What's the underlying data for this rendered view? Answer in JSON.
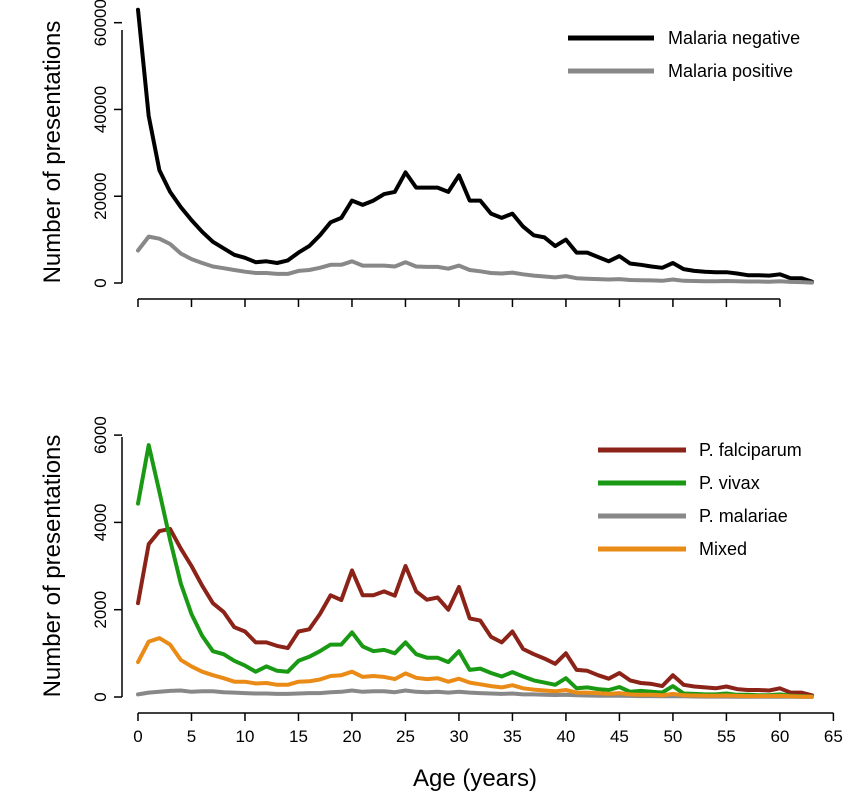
{
  "chart_data": [
    {
      "type": "line",
      "title": "",
      "xlabel": "",
      "ylabel": "Number of presentations",
      "xlim": [
        0,
        63
      ],
      "ylim": [
        0,
        65000
      ],
      "x_ticks": [
        0,
        5,
        10,
        15,
        20,
        25,
        30,
        35,
        40,
        45,
        50,
        55,
        60
      ],
      "y_ticks": [
        0,
        20000,
        40000,
        60000
      ],
      "y_tick_labels": [
        "0",
        "20000",
        "40000",
        "60000"
      ],
      "legend_position": "top-right",
      "x": [
        0,
        1,
        2,
        3,
        4,
        5,
        6,
        7,
        8,
        9,
        10,
        11,
        12,
        13,
        14,
        15,
        16,
        17,
        18,
        19,
        20,
        21,
        22,
        23,
        24,
        25,
        26,
        27,
        28,
        29,
        30,
        31,
        32,
        33,
        34,
        35,
        36,
        37,
        38,
        39,
        40,
        41,
        42,
        43,
        44,
        45,
        46,
        47,
        48,
        49,
        50,
        51,
        52,
        53,
        54,
        55,
        56,
        57,
        58,
        59,
        60,
        61,
        62,
        63
      ],
      "series": [
        {
          "name": "Malaria negative",
          "color": "#000000",
          "values": [
            63000,
            38500,
            26000,
            21000,
            17500,
            14500,
            11800,
            9500,
            8000,
            6500,
            5800,
            4800,
            5000,
            4600,
            5200,
            7000,
            8500,
            11000,
            14000,
            15000,
            19000,
            18000,
            19000,
            20500,
            21000,
            25500,
            22000,
            22000,
            22000,
            21000,
            24800,
            19000,
            19000,
            16000,
            15000,
            16000,
            13000,
            11000,
            10500,
            8500,
            10000,
            7000,
            7000,
            6000,
            5000,
            6200,
            4500,
            4200,
            3800,
            3500,
            4600,
            3200,
            2800,
            2600,
            2500,
            2500,
            2200,
            1800,
            1800,
            1700,
            2000,
            1100,
            1100,
            300
          ]
        },
        {
          "name": "Malaria positive",
          "color": "#888888",
          "values": [
            7500,
            10700,
            10200,
            9000,
            6800,
            5500,
            4600,
            3800,
            3400,
            3000,
            2600,
            2300,
            2300,
            2100,
            2100,
            2800,
            3000,
            3500,
            4200,
            4200,
            5000,
            4000,
            4000,
            4000,
            3800,
            4800,
            3800,
            3700,
            3700,
            3300,
            4000,
            3000,
            2700,
            2300,
            2200,
            2400,
            2000,
            1700,
            1500,
            1300,
            1600,
            1100,
            1000,
            900,
            800,
            900,
            700,
            650,
            600,
            500,
            800,
            500,
            450,
            400,
            400,
            450,
            400,
            350,
            350,
            300,
            400,
            250,
            200,
            100
          ]
        }
      ]
    },
    {
      "type": "line",
      "title": "",
      "xlabel": "Age (years)",
      "ylabel": "Number of presentations",
      "xlim": [
        0,
        63
      ],
      "ylim": [
        0,
        6300
      ],
      "x_ticks": [
        0,
        5,
        10,
        15,
        20,
        25,
        30,
        35,
        40,
        45,
        50,
        55,
        60,
        65
      ],
      "x_tick_labels": [
        "0",
        "5",
        "10",
        "15",
        "20",
        "25",
        "30",
        "35",
        "40",
        "45",
        "50",
        "55",
        "60",
        "65"
      ],
      "y_ticks": [
        0,
        2000,
        4000,
        6000
      ],
      "y_tick_labels": [
        "0",
        "2000",
        "4000",
        "6000"
      ],
      "legend_position": "top-right",
      "x": [
        0,
        1,
        2,
        3,
        4,
        5,
        6,
        7,
        8,
        9,
        10,
        11,
        12,
        13,
        14,
        15,
        16,
        17,
        18,
        19,
        20,
        21,
        22,
        23,
        24,
        25,
        26,
        27,
        28,
        29,
        30,
        31,
        32,
        33,
        34,
        35,
        36,
        37,
        38,
        39,
        40,
        41,
        42,
        43,
        44,
        45,
        46,
        47,
        48,
        49,
        50,
        51,
        52,
        53,
        54,
        55,
        56,
        57,
        58,
        59,
        60,
        61,
        62,
        63
      ],
      "series": [
        {
          "name": "P. falciparum",
          "color": "#8b2318",
          "values": [
            2150,
            3500,
            3800,
            3850,
            3400,
            3000,
            2550,
            2150,
            1950,
            1600,
            1500,
            1250,
            1250,
            1170,
            1120,
            1500,
            1550,
            1900,
            2330,
            2220,
            2900,
            2330,
            2330,
            2420,
            2320,
            3000,
            2420,
            2230,
            2280,
            2000,
            2520,
            1800,
            1750,
            1380,
            1250,
            1500,
            1100,
            980,
            880,
            760,
            1000,
            620,
            600,
            500,
            420,
            550,
            380,
            320,
            300,
            250,
            500,
            280,
            240,
            220,
            200,
            240,
            180,
            160,
            160,
            150,
            200,
            100,
            100,
            40
          ]
        },
        {
          "name": "P. vivax",
          "color": "#1a9a14",
          "values": [
            4430,
            5770,
            4700,
            3600,
            2600,
            1900,
            1400,
            1050,
            980,
            830,
            720,
            580,
            700,
            600,
            580,
            830,
            920,
            1050,
            1200,
            1200,
            1480,
            1160,
            1050,
            1080,
            1000,
            1250,
            980,
            900,
            900,
            800,
            1050,
            620,
            650,
            550,
            470,
            570,
            470,
            380,
            330,
            280,
            430,
            200,
            220,
            180,
            160,
            230,
            120,
            140,
            120,
            100,
            250,
            80,
            70,
            60,
            60,
            80,
            50,
            50,
            40,
            40,
            60,
            30,
            20,
            10
          ]
        },
        {
          "name": "P. malariae",
          "color": "#888888",
          "values": [
            60,
            100,
            120,
            140,
            150,
            120,
            130,
            130,
            110,
            100,
            90,
            80,
            80,
            70,
            70,
            80,
            90,
            90,
            110,
            120,
            150,
            120,
            130,
            130,
            110,
            150,
            120,
            110,
            120,
            100,
            120,
            100,
            90,
            80,
            70,
            80,
            60,
            60,
            50,
            45,
            50,
            40,
            35,
            30,
            30,
            30,
            25,
            20,
            20,
            15,
            20,
            15,
            12,
            10,
            10,
            10,
            8,
            8,
            5,
            5,
            5,
            4,
            3,
            2
          ]
        },
        {
          "name": "Mixed",
          "color": "#e98b16",
          "values": [
            800,
            1270,
            1350,
            1200,
            850,
            700,
            580,
            500,
            430,
            350,
            350,
            310,
            320,
            280,
            280,
            350,
            360,
            400,
            480,
            500,
            580,
            460,
            480,
            460,
            410,
            540,
            440,
            410,
            430,
            350,
            420,
            330,
            290,
            250,
            220,
            270,
            200,
            170,
            150,
            130,
            160,
            100,
            100,
            90,
            70,
            90,
            60,
            50,
            50,
            40,
            70,
            40,
            35,
            30,
            30,
            35,
            25,
            20,
            20,
            20,
            25,
            15,
            10,
            5
          ]
        }
      ]
    }
  ]
}
